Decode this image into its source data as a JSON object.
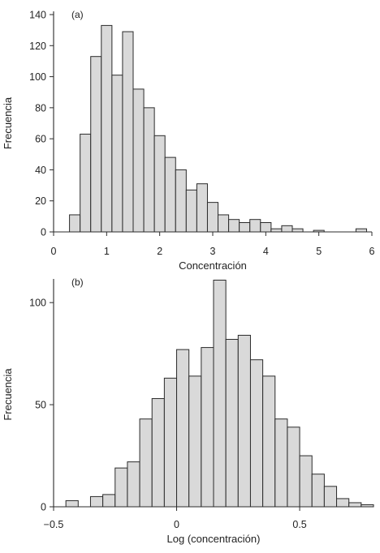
{
  "colors": {
    "bar_fill": "#d9d9d9",
    "bar_stroke": "#2b2b2b",
    "axis": "#2b2b2b",
    "text": "#222222",
    "background": "#ffffff"
  },
  "chart_data": [
    {
      "type": "bar",
      "panel_label": "(a)",
      "xlabel": "Concentración",
      "ylabel": "Frecuencia",
      "xlim": [
        0,
        6
      ],
      "ylim": [
        0,
        140
      ],
      "xticks": [
        0,
        1,
        2,
        3,
        4,
        5,
        6
      ],
      "yticks": [
        0,
        20,
        40,
        60,
        80,
        100,
        120,
        140
      ],
      "bin_width": 0.2,
      "bins": [
        {
          "x0": 0.3,
          "count": 11
        },
        {
          "x0": 0.5,
          "count": 63
        },
        {
          "x0": 0.7,
          "count": 113
        },
        {
          "x0": 0.9,
          "count": 133
        },
        {
          "x0": 1.1,
          "count": 101
        },
        {
          "x0": 1.3,
          "count": 129
        },
        {
          "x0": 1.5,
          "count": 92
        },
        {
          "x0": 1.7,
          "count": 80
        },
        {
          "x0": 1.9,
          "count": 62
        },
        {
          "x0": 2.1,
          "count": 48
        },
        {
          "x0": 2.3,
          "count": 40
        },
        {
          "x0": 2.5,
          "count": 27
        },
        {
          "x0": 2.7,
          "count": 31
        },
        {
          "x0": 2.9,
          "count": 19
        },
        {
          "x0": 3.1,
          "count": 11
        },
        {
          "x0": 3.3,
          "count": 8
        },
        {
          "x0": 3.5,
          "count": 6
        },
        {
          "x0": 3.7,
          "count": 8
        },
        {
          "x0": 3.9,
          "count": 6
        },
        {
          "x0": 4.1,
          "count": 2
        },
        {
          "x0": 4.3,
          "count": 4
        },
        {
          "x0": 4.5,
          "count": 2
        },
        {
          "x0": 4.9,
          "count": 1
        },
        {
          "x0": 5.7,
          "count": 2
        }
      ]
    },
    {
      "type": "bar",
      "panel_label": "(b)",
      "xlabel": "Log (concentración)",
      "ylabel": "Frecuencia",
      "xlim": [
        -0.5,
        0.8
      ],
      "ylim": [
        0,
        110
      ],
      "xticks": [
        -0.5,
        0,
        0.5
      ],
      "xtick_labels": [
        "−0.5",
        "0",
        "0.5"
      ],
      "yticks": [
        0,
        50,
        100
      ],
      "bin_width": 0.05,
      "bins": [
        {
          "x0": -0.45,
          "count": 3
        },
        {
          "x0": -0.35,
          "count": 5
        },
        {
          "x0": -0.3,
          "count": 6
        },
        {
          "x0": -0.25,
          "count": 19
        },
        {
          "x0": -0.2,
          "count": 22
        },
        {
          "x0": -0.15,
          "count": 43
        },
        {
          "x0": -0.1,
          "count": 53
        },
        {
          "x0": -0.05,
          "count": 63
        },
        {
          "x0": 0.0,
          "count": 77
        },
        {
          "x0": 0.05,
          "count": 64
        },
        {
          "x0": 0.1,
          "count": 78
        },
        {
          "x0": 0.15,
          "count": 111
        },
        {
          "x0": 0.2,
          "count": 82
        },
        {
          "x0": 0.25,
          "count": 84
        },
        {
          "x0": 0.3,
          "count": 72
        },
        {
          "x0": 0.35,
          "count": 64
        },
        {
          "x0": 0.4,
          "count": 43
        },
        {
          "x0": 0.45,
          "count": 39
        },
        {
          "x0": 0.5,
          "count": 25
        },
        {
          "x0": 0.55,
          "count": 16
        },
        {
          "x0": 0.6,
          "count": 10
        },
        {
          "x0": 0.65,
          "count": 4
        },
        {
          "x0": 0.7,
          "count": 2
        },
        {
          "x0": 0.75,
          "count": 1
        }
      ]
    }
  ]
}
